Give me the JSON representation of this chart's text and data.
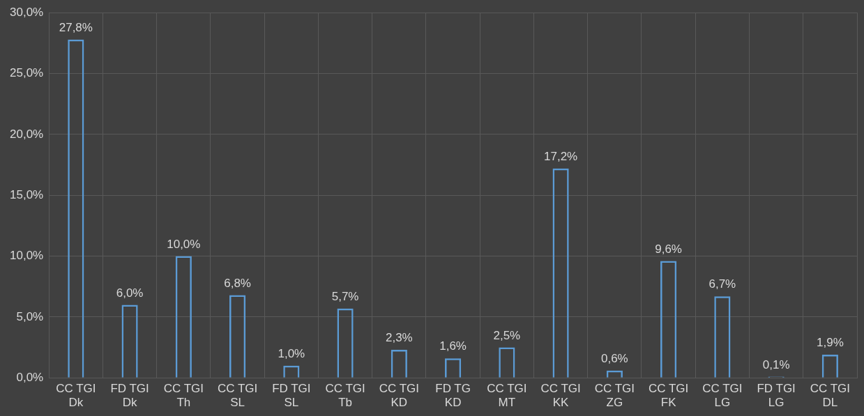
{
  "chart_data": {
    "type": "bar",
    "categories": [
      "CC TGI\nDk",
      "FD TGI\nDk",
      "CC TGI\nTh",
      "CC TGI\nSL",
      "FD TGI\nSL",
      "CC TGI\nTb",
      "CC TGI\nKD",
      "FD TG\nKD",
      "CC TGI\nMT",
      "CC TGI\nKK",
      "CC TGI\nZG",
      "CC TGI\nFK",
      "CC TGI\nLG",
      "FD TGI\nLG",
      "CC TGI\nDL"
    ],
    "values": [
      27.8,
      6.0,
      10.0,
      6.8,
      1.0,
      5.7,
      2.3,
      1.6,
      2.5,
      17.2,
      0.6,
      9.6,
      6.7,
      0.1,
      1.9
    ],
    "value_labels": [
      "27,8%",
      "6,0%",
      "10,0%",
      "6,8%",
      "1,0%",
      "5,7%",
      "2,3%",
      "1,6%",
      "2,5%",
      "17,2%",
      "0,6%",
      "9,6%",
      "6,7%",
      "0,1%",
      "1,9%"
    ],
    "color": "#5b9bd5",
    "ylim": [
      0,
      30
    ],
    "yticks": [
      {
        "value": 0,
        "label": "0,0%"
      },
      {
        "value": 5,
        "label": "5,0%"
      },
      {
        "value": 10,
        "label": "10,0%"
      },
      {
        "value": 15,
        "label": "15,0%"
      },
      {
        "value": 20,
        "label": "20,0%"
      },
      {
        "value": 25,
        "label": "25,0%"
      },
      {
        "value": 30,
        "label": "30,0%"
      }
    ],
    "grid": true,
    "legend": false
  }
}
